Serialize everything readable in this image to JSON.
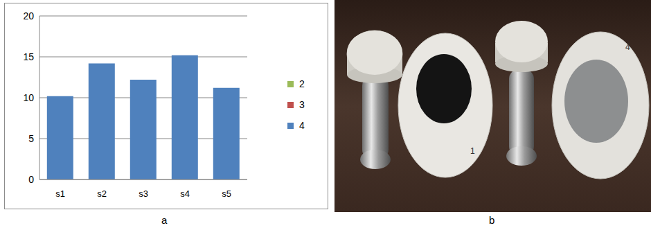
{
  "chart_data": {
    "type": "bar",
    "categories": [
      "s1",
      "s2",
      "s3",
      "s4",
      "s5"
    ],
    "series": [
      {
        "name": "2",
        "color": "#9bbb59",
        "values": [
          null,
          null,
          null,
          null,
          null
        ]
      },
      {
        "name": "3",
        "color": "#c0504d",
        "values": [
          null,
          null,
          null,
          null,
          null
        ]
      },
      {
        "name": "4",
        "color": "#4f81bd",
        "values": [
          10.2,
          14.2,
          12.2,
          15.2,
          11.2
        ]
      }
    ],
    "ylim": [
      0,
      20
    ],
    "yticks": [
      0,
      5,
      10,
      15,
      20
    ],
    "grid": true,
    "legend": "right"
  },
  "captions": [
    "a",
    "b"
  ],
  "photo": {
    "labels": [
      "1",
      "4"
    ]
  }
}
